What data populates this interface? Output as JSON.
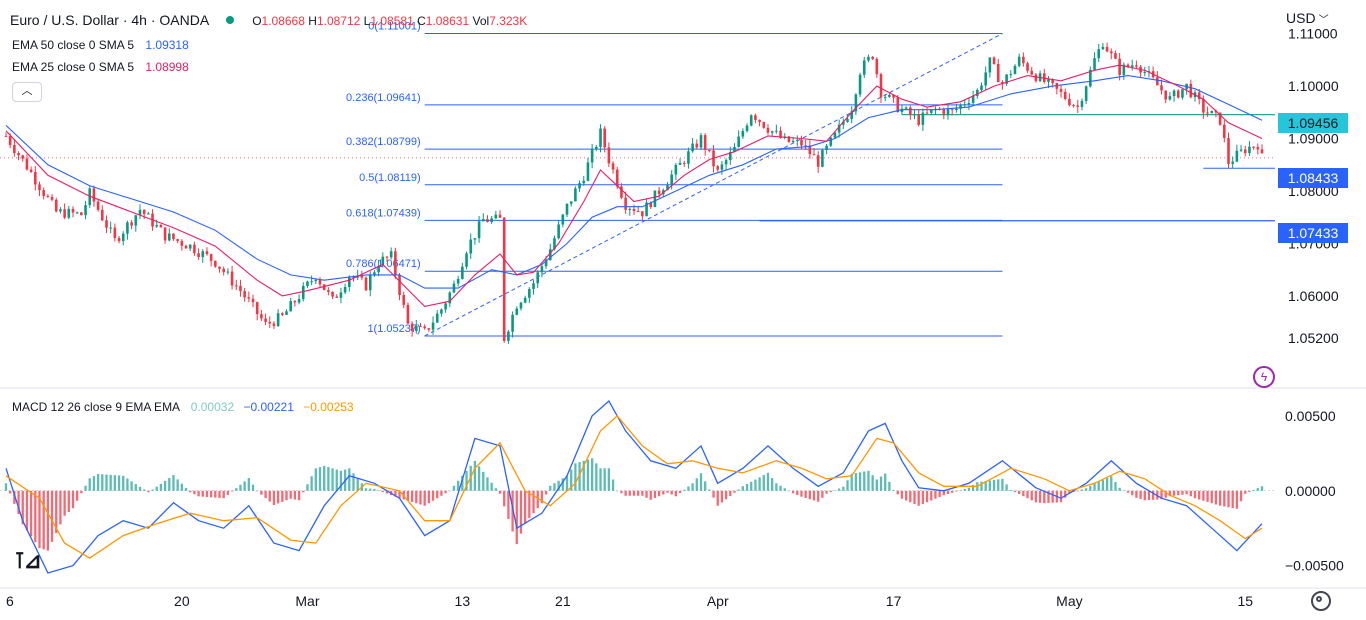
{
  "header": {
    "symbol": "Euro / U.S. Dollar · 4h · OANDA",
    "o_label": "O",
    "o": "1.08668",
    "h_label": "H",
    "h": "1.08712",
    "l_label": "L",
    "l": "1.08581",
    "c_label": "C",
    "c": "1.08631",
    "vol_label": "Vol",
    "vol": "7.323K",
    "status_color": "#089981"
  },
  "indicators": {
    "ema50": {
      "label": "EMA 50 close 0 SMA 5",
      "value": "1.09318",
      "color": "#2962ff"
    },
    "ema25": {
      "label": "EMA 25 close 0 SMA 5",
      "value": "1.08998",
      "color": "#e91e63"
    },
    "macd": {
      "label": "MACD 12 26 close 9 EMA EMA",
      "hist": "0.00032",
      "macd_value": "−0.00221",
      "signal": "−0.00253",
      "hist_color": "#80cbc4",
      "macd_color": "#2962ff",
      "signal_color": "#ff9800"
    }
  },
  "currency_menu": "USD",
  "price_badges": {
    "resistance": {
      "text": "1.09456",
      "color": "#26c6da"
    },
    "current": {
      "text": "1.08433",
      "color": "#2962ff"
    },
    "target": {
      "text": "1.07433",
      "color": "#2962ff"
    }
  },
  "chart_data": {
    "type": "candlestick",
    "timeframe": "4h",
    "y_range": [
      1.0455,
      1.1145
    ],
    "y_ticks": [
      "1.11000",
      "1.10000",
      "1.09000",
      "1.08000",
      "1.07000",
      "1.06000",
      "1.05200"
    ],
    "y_tick_values": [
      1.11,
      1.1,
      1.09,
      1.08,
      1.07,
      1.06,
      1.052
    ],
    "x_ticks": [
      {
        "label": "6",
        "i": 0
      },
      {
        "label": "20",
        "i": 42
      },
      {
        "label": "Mar",
        "i": 72
      },
      {
        "label": "13",
        "i": 109
      },
      {
        "label": "21",
        "i": 133
      },
      {
        "label": "Apr",
        "i": 170
      },
      {
        "label": "17",
        "i": 212
      },
      {
        "label": "May",
        "i": 254
      },
      {
        "label": "15",
        "i": 296
      }
    ],
    "close_path": [
      [
        0,
        1.0905
      ],
      [
        6,
        1.0835
      ],
      [
        12,
        1.076
      ],
      [
        18,
        1.0755
      ],
      [
        20,
        1.0795
      ],
      [
        26,
        1.0705
      ],
      [
        32,
        1.0765
      ],
      [
        38,
        1.0715
      ],
      [
        44,
        1.0695
      ],
      [
        50,
        1.0665
      ],
      [
        56,
        1.061
      ],
      [
        62,
        1.0545
      ],
      [
        66,
        1.056
      ],
      [
        70,
        1.06
      ],
      [
        74,
        1.064
      ],
      [
        78,
        1.059
      ],
      [
        82,
        1.064
      ],
      [
        86,
        1.062
      ],
      [
        89,
        1.0665
      ],
      [
        92,
        1.0675
      ],
      [
        94,
        1.061
      ],
      [
        96,
        1.0545
      ],
      [
        100,
        1.053
      ],
      [
        104,
        1.0575
      ],
      [
        107,
        1.062
      ],
      [
        110,
        1.069
      ],
      [
        114,
        1.0745
      ],
      [
        118,
        1.0745
      ],
      [
        118.6,
        1.056
      ],
      [
        119,
        1.052
      ],
      [
        122,
        1.0585
      ],
      [
        126,
        1.0625
      ],
      [
        130,
        1.069
      ],
      [
        134,
        1.077
      ],
      [
        138,
        1.083
      ],
      [
        142,
        1.091
      ],
      [
        144,
        1.086
      ],
      [
        148,
        1.0775
      ],
      [
        152,
        1.076
      ],
      [
        156,
        1.08
      ],
      [
        160,
        1.084
      ],
      [
        166,
        1.09
      ],
      [
        170,
        1.0835
      ],
      [
        174,
        1.088
      ],
      [
        178,
        1.095
      ],
      [
        182,
        1.092
      ],
      [
        186,
        1.0895
      ],
      [
        190,
        1.089
      ],
      [
        194,
        1.0855
      ],
      [
        198,
        1.0905
      ],
      [
        202,
        1.096
      ],
      [
        204,
        1.103
      ],
      [
        207,
        1.106
      ],
      [
        209,
        1.099
      ],
      [
        213,
        1.096
      ],
      [
        218,
        1.0935
      ],
      [
        222,
        1.0955
      ],
      [
        226,
        1.095
      ],
      [
        232,
        1.099
      ],
      [
        235,
        1.1045
      ],
      [
        238,
        1.1005
      ],
      [
        242,
        1.105
      ],
      [
        246,
        1.102
      ],
      [
        252,
        1.0985
      ],
      [
        256,
        1.096
      ],
      [
        260,
        1.105
      ],
      [
        262,
        1.1085
      ],
      [
        266,
        1.103
      ],
      [
        270,
        1.1045
      ],
      [
        274,
        1.101
      ],
      [
        278,
        1.0975
      ],
      [
        282,
        1.1
      ],
      [
        286,
        1.0955
      ],
      [
        290,
        1.0935
      ],
      [
        292,
        1.0855
      ],
      [
        296,
        1.088
      ],
      [
        299,
        1.089
      ],
      [
        300,
        1.0863
      ]
    ],
    "ema25_path": [
      [
        0,
        1.0915
      ],
      [
        10,
        1.083
      ],
      [
        20,
        1.079
      ],
      [
        30,
        1.076
      ],
      [
        40,
        1.073
      ],
      [
        50,
        1.0695
      ],
      [
        60,
        1.063
      ],
      [
        66,
        1.06
      ],
      [
        72,
        1.061
      ],
      [
        82,
        1.063
      ],
      [
        90,
        1.066
      ],
      [
        95,
        1.062
      ],
      [
        100,
        1.058
      ],
      [
        106,
        1.059
      ],
      [
        112,
        1.064
      ],
      [
        118,
        1.068
      ],
      [
        122,
        1.064
      ],
      [
        126,
        1.0645
      ],
      [
        132,
        1.07
      ],
      [
        138,
        1.078
      ],
      [
        142,
        1.084
      ],
      [
        146,
        1.081
      ],
      [
        150,
        1.078
      ],
      [
        156,
        1.079
      ],
      [
        162,
        1.083
      ],
      [
        168,
        1.086
      ],
      [
        174,
        1.0875
      ],
      [
        182,
        1.0905
      ],
      [
        190,
        1.09
      ],
      [
        196,
        1.0895
      ],
      [
        202,
        1.095
      ],
      [
        208,
        1.1
      ],
      [
        214,
        1.0975
      ],
      [
        220,
        1.096
      ],
      [
        228,
        1.097
      ],
      [
        236,
        1.1
      ],
      [
        244,
        1.102
      ],
      [
        252,
        1.101
      ],
      [
        260,
        1.103
      ],
      [
        266,
        1.104
      ],
      [
        272,
        1.103
      ],
      [
        280,
        1.1
      ],
      [
        286,
        1.0975
      ],
      [
        292,
        1.093
      ],
      [
        300,
        1.09
      ]
    ],
    "ema50_path": [
      [
        0,
        1.0925
      ],
      [
        10,
        1.085
      ],
      [
        20,
        1.081
      ],
      [
        30,
        1.0785
      ],
      [
        40,
        1.076
      ],
      [
        50,
        1.0725
      ],
      [
        60,
        1.067
      ],
      [
        68,
        1.064
      ],
      [
        76,
        1.063
      ],
      [
        86,
        1.064
      ],
      [
        94,
        1.064
      ],
      [
        100,
        1.0615
      ],
      [
        108,
        1.0615
      ],
      [
        116,
        1.065
      ],
      [
        122,
        1.064
      ],
      [
        128,
        1.066
      ],
      [
        134,
        1.07
      ],
      [
        140,
        1.075
      ],
      [
        146,
        1.077
      ],
      [
        152,
        1.077
      ],
      [
        160,
        1.08
      ],
      [
        168,
        1.083
      ],
      [
        176,
        1.085
      ],
      [
        184,
        1.088
      ],
      [
        192,
        1.0885
      ],
      [
        198,
        1.09
      ],
      [
        206,
        1.094
      ],
      [
        214,
        1.0955
      ],
      [
        222,
        1.0955
      ],
      [
        230,
        1.096
      ],
      [
        240,
        1.0985
      ],
      [
        250,
        1.1
      ],
      [
        260,
        1.101
      ],
      [
        268,
        1.102
      ],
      [
        276,
        1.101
      ],
      [
        284,
        1.0995
      ],
      [
        292,
        1.0965
      ],
      [
        300,
        1.0935
      ]
    ],
    "macd_y_range": [
      -0.0065,
      0.0064
    ],
    "macd_ticks": [
      "0.00500",
      "0.00000",
      "−0.00500"
    ],
    "macd_tick_values": [
      0.005,
      0.0,
      -0.005
    ],
    "macd_path": [
      [
        0,
        0.0015
      ],
      [
        4,
        -0.002
      ],
      [
        10,
        -0.0055
      ],
      [
        16,
        -0.005
      ],
      [
        22,
        -0.003
      ],
      [
        28,
        -0.002
      ],
      [
        34,
        -0.0025
      ],
      [
        40,
        -0.0008
      ],
      [
        46,
        -0.002
      ],
      [
        52,
        -0.0025
      ],
      [
        58,
        -0.001
      ],
      [
        64,
        -0.0035
      ],
      [
        70,
        -0.004
      ],
      [
        76,
        -0.001
      ],
      [
        82,
        0.001
      ],
      [
        88,
        0.0005
      ],
      [
        94,
        -0.0005
      ],
      [
        100,
        -0.003
      ],
      [
        106,
        -0.002
      ],
      [
        112,
        0.0035
      ],
      [
        118,
        0.003
      ],
      [
        122,
        -0.0025
      ],
      [
        128,
        -0.0015
      ],
      [
        134,
        0.001
      ],
      [
        140,
        0.005
      ],
      [
        144,
        0.006
      ],
      [
        148,
        0.004
      ],
      [
        154,
        0.002
      ],
      [
        160,
        0.0015
      ],
      [
        166,
        0.003
      ],
      [
        170,
        0.0005
      ],
      [
        176,
        0.0015
      ],
      [
        182,
        0.003
      ],
      [
        188,
        0.0015
      ],
      [
        194,
        0.0003
      ],
      [
        200,
        0.0012
      ],
      [
        206,
        0.004
      ],
      [
        210,
        0.0045
      ],
      [
        214,
        0.002
      ],
      [
        218,
        0.0002
      ],
      [
        224,
        0.0
      ],
      [
        230,
        0.0005
      ],
      [
        238,
        0.002
      ],
      [
        246,
        0.0002
      ],
      [
        252,
        -0.0005
      ],
      [
        258,
        0.0005
      ],
      [
        264,
        0.002
      ],
      [
        270,
        0.0005
      ],
      [
        276,
        -0.0005
      ],
      [
        282,
        -0.001
      ],
      [
        288,
        -0.0025
      ],
      [
        294,
        -0.004
      ],
      [
        300,
        -0.0022
      ]
    ],
    "signal_path": [
      [
        0,
        0.001
      ],
      [
        8,
        -0.0005
      ],
      [
        14,
        -0.0035
      ],
      [
        20,
        -0.0045
      ],
      [
        28,
        -0.003
      ],
      [
        36,
        -0.0022
      ],
      [
        44,
        -0.0015
      ],
      [
        52,
        -0.002
      ],
      [
        60,
        -0.0018
      ],
      [
        68,
        -0.0033
      ],
      [
        74,
        -0.0035
      ],
      [
        80,
        -0.001
      ],
      [
        86,
        0.0005
      ],
      [
        94,
        0.0
      ],
      [
        100,
        -0.002
      ],
      [
        106,
        -0.002
      ],
      [
        112,
        0.0015
      ],
      [
        118,
        0.0032
      ],
      [
        124,
        0.0
      ],
      [
        130,
        -0.001
      ],
      [
        136,
        0.0005
      ],
      [
        142,
        0.004
      ],
      [
        146,
        0.005
      ],
      [
        152,
        0.003
      ],
      [
        158,
        0.0018
      ],
      [
        164,
        0.002
      ],
      [
        170,
        0.0015
      ],
      [
        176,
        0.0012
      ],
      [
        184,
        0.002
      ],
      [
        190,
        0.0015
      ],
      [
        196,
        0.0008
      ],
      [
        202,
        0.001
      ],
      [
        208,
        0.0035
      ],
      [
        212,
        0.0032
      ],
      [
        218,
        0.0012
      ],
      [
        224,
        0.0003
      ],
      [
        232,
        0.0003
      ],
      [
        240,
        0.0015
      ],
      [
        248,
        0.0008
      ],
      [
        254,
        0.0
      ],
      [
        260,
        0.0005
      ],
      [
        266,
        0.0013
      ],
      [
        272,
        0.0008
      ],
      [
        278,
        -0.0003
      ],
      [
        284,
        -0.001
      ],
      [
        290,
        -0.002
      ],
      [
        296,
        -0.0032
      ],
      [
        300,
        -0.0025
      ]
    ],
    "fib_levels": [
      {
        "label": "0(1.11001)",
        "price": 1.11001
      },
      {
        "label": "0.236(1.09641)",
        "price": 1.09641
      },
      {
        "label": "0.382(1.08799)",
        "price": 1.08799
      },
      {
        "label": "0.5(1.08119)",
        "price": 1.08119
      },
      {
        "label": "0.618(1.07439)",
        "price": 1.07439
      },
      {
        "label": "0.786(1.06471)",
        "price": 1.06471
      },
      {
        "label": "1(1.05237)",
        "price": 1.05237
      }
    ],
    "fib_start_i": 100,
    "fib_end_i": 238,
    "fib_color": "#2962ff",
    "resistance_price": 1.09456,
    "support_price": 1.08433,
    "target_price": 1.07433,
    "current_price": 1.08631,
    "up_color": "#089981",
    "down_color": "#f23645"
  }
}
